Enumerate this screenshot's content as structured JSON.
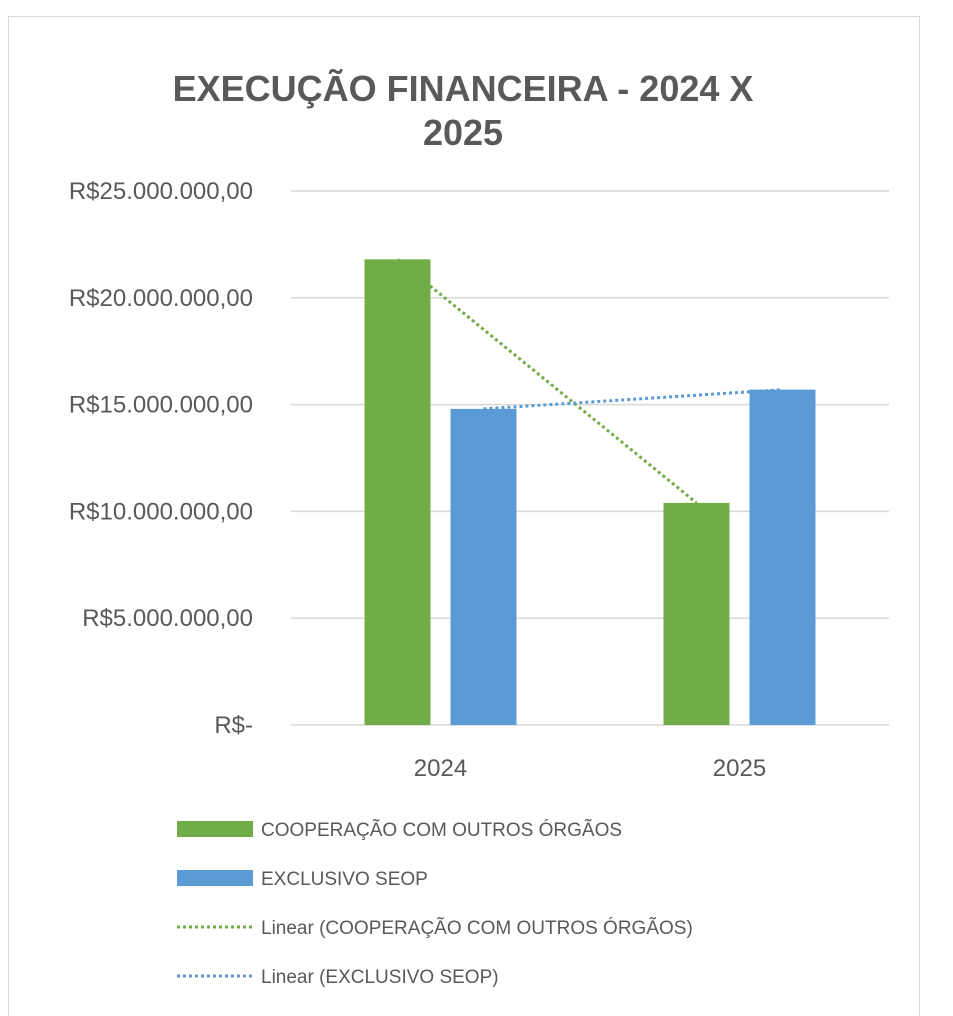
{
  "chart_data": {
    "type": "bar",
    "title_lines": [
      "EXECUÇÃO FINANCEIRA - 2024 X",
      "2025"
    ],
    "categories": [
      "2024",
      "2025"
    ],
    "series": [
      {
        "name": "COOPERAÇÃO COM OUTROS ÓRGÃOS",
        "color": "#70ad47",
        "values": [
          21800000,
          10400000
        ]
      },
      {
        "name": "EXCLUSIVO SEOP",
        "color": "#5b9bd5",
        "values": [
          14800000,
          15700000
        ]
      }
    ],
    "trendlines": [
      {
        "name": "Linear (COOPERAÇÃO COM OUTROS ÓRGÃOS)",
        "color": "#70ad47",
        "series_index": 0
      },
      {
        "name": "Linear (EXCLUSIVO SEOP)",
        "color": "#5b9bd5",
        "series_index": 1
      }
    ],
    "ylim": [
      0,
      25000000
    ],
    "y_ticks": [
      {
        "value": 0,
        "label": "R$-"
      },
      {
        "value": 5000000,
        "label": "R$5.000.000,00"
      },
      {
        "value": 10000000,
        "label": "R$10.000.000,00"
      },
      {
        "value": 15000000,
        "label": "R$15.000.000,00"
      },
      {
        "value": 20000000,
        "label": "R$20.000.000,00"
      },
      {
        "value": 25000000,
        "label": "R$25.000.000,00"
      }
    ],
    "grid": true,
    "legend_position": "bottom"
  }
}
